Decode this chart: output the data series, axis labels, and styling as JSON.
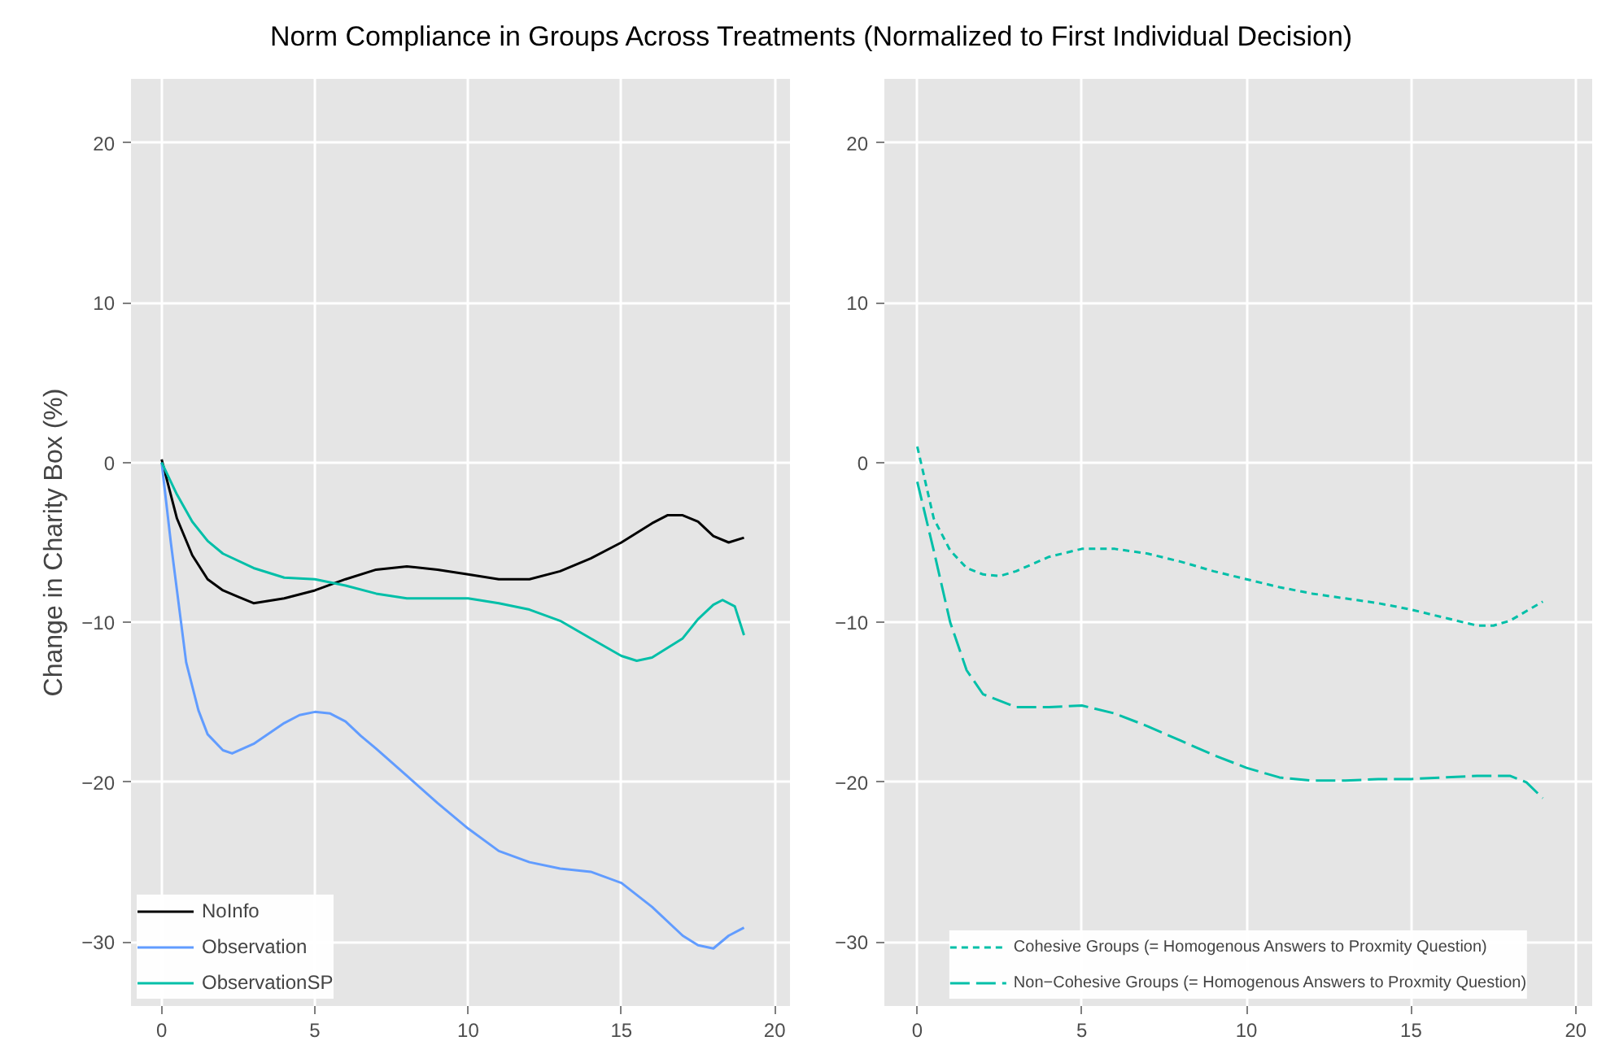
{
  "chart_data": [
    {
      "type": "line",
      "title": "Norm Compliance in Groups Across Treatments (Normalized to First Individual Decision)",
      "ylabel": "Change in Charity Box (%)",
      "xlim": [
        -1.0,
        20.5
      ],
      "ylim": [
        -34,
        24
      ],
      "xticks": [
        0,
        5,
        10,
        15,
        20
      ],
      "yticks": [
        -30,
        -20,
        -10,
        0,
        10,
        20
      ],
      "grid": true,
      "legend": "bottom left",
      "line_style": "solid",
      "series": [
        {
          "name": "NoInfo",
          "color": "#000000",
          "x": [
            0,
            0.5,
            1,
            1.5,
            2,
            2.5,
            3,
            4,
            5,
            6,
            7,
            8,
            9,
            10,
            11,
            12,
            13,
            14,
            15,
            16,
            16.5,
            17,
            17.5,
            18,
            18.5,
            19
          ],
          "values": [
            0.2,
            -3.5,
            -5.8,
            -7.3,
            -8,
            -8.4,
            -8.8,
            -8.5,
            -8,
            -7.3,
            -6.7,
            -6.5,
            -6.7,
            -7,
            -7.3,
            -7.3,
            -6.8,
            -6,
            -5,
            -3.8,
            -3.3,
            -3.3,
            -3.7,
            -4.6,
            -5,
            -4.7
          ]
        },
        {
          "name": "Observation",
          "color": "#619cff",
          "x": [
            0,
            0.3,
            0.5,
            0.8,
            1.2,
            1.5,
            2,
            2.3,
            3,
            4,
            4.5,
            5,
            5.5,
            6,
            6.5,
            7,
            8,
            9,
            10,
            11,
            12,
            13,
            14,
            15,
            16,
            17,
            17.5,
            18,
            18.5,
            19
          ],
          "values": [
            0,
            -5,
            -8,
            -12.5,
            -15.5,
            -17,
            -18,
            -18.2,
            -17.6,
            -16.3,
            -15.8,
            -15.6,
            -15.7,
            -16.2,
            -17.1,
            -17.9,
            -19.6,
            -21.3,
            -22.9,
            -24.3,
            -25,
            -25.4,
            -25.6,
            -26.3,
            -27.8,
            -29.6,
            -30.2,
            -30.4,
            -29.6,
            -29.1
          ]
        },
        {
          "name": "ObservationSP",
          "color": "#00bfa8",
          "x": [
            0,
            0.5,
            1,
            1.5,
            2,
            3,
            4,
            5,
            6,
            7,
            8,
            9,
            10,
            11,
            12,
            13,
            14,
            15,
            15.5,
            16,
            17,
            17.5,
            18,
            18.3,
            18.7,
            19
          ],
          "values": [
            0,
            -2,
            -3.7,
            -4.9,
            -5.7,
            -6.6,
            -7.2,
            -7.3,
            -7.7,
            -8.2,
            -8.5,
            -8.5,
            -8.5,
            -8.8,
            -9.2,
            -9.9,
            -11,
            -12.1,
            -12.4,
            -12.2,
            -11,
            -9.8,
            -8.9,
            -8.6,
            -9,
            -10.8
          ]
        }
      ]
    },
    {
      "type": "line",
      "xlim": [
        -1.0,
        20.5
      ],
      "ylim": [
        -34,
        24
      ],
      "xticks": [
        0,
        5,
        10,
        15,
        20
      ],
      "yticks": [
        -30,
        -20,
        -10,
        0,
        10,
        20
      ],
      "grid": true,
      "legend": "bottom",
      "series": [
        {
          "name": "Cohesive Groups (= Homogenous Answers to Proxmity Question)",
          "color": "#00bfa8",
          "line_style": "dashed",
          "x": [
            0,
            0.5,
            1,
            1.5,
            2,
            2.5,
            3,
            4,
            5,
            6,
            7,
            8,
            9,
            10,
            11,
            12,
            13,
            14,
            15,
            16,
            17,
            17.5,
            18,
            19
          ],
          "values": [
            1,
            -3.5,
            -5.5,
            -6.6,
            -7,
            -7.1,
            -6.8,
            -5.9,
            -5.4,
            -5.4,
            -5.7,
            -6.2,
            -6.8,
            -7.3,
            -7.8,
            -8.2,
            -8.5,
            -8.8,
            -9.2,
            -9.7,
            -10.2,
            -10.2,
            -9.9,
            -8.7
          ]
        },
        {
          "name": "Non−Cohesive Groups (= Homogenous Answers to Proxmity Question)",
          "color": "#00bfa8",
          "line_style": "longdash",
          "x": [
            0,
            0.5,
            1,
            1.5,
            2,
            3,
            4,
            5,
            6,
            7,
            8,
            9,
            10,
            11,
            12,
            13,
            14,
            15,
            16,
            17,
            18,
            18.5,
            19
          ],
          "values": [
            -1.2,
            -5.5,
            -10,
            -13,
            -14.5,
            -15.3,
            -15.3,
            -15.2,
            -15.7,
            -16.5,
            -17.4,
            -18.3,
            -19.1,
            -19.7,
            -19.9,
            -19.9,
            -19.8,
            -19.8,
            -19.7,
            -19.6,
            -19.6,
            -20,
            -21
          ]
        }
      ]
    }
  ]
}
